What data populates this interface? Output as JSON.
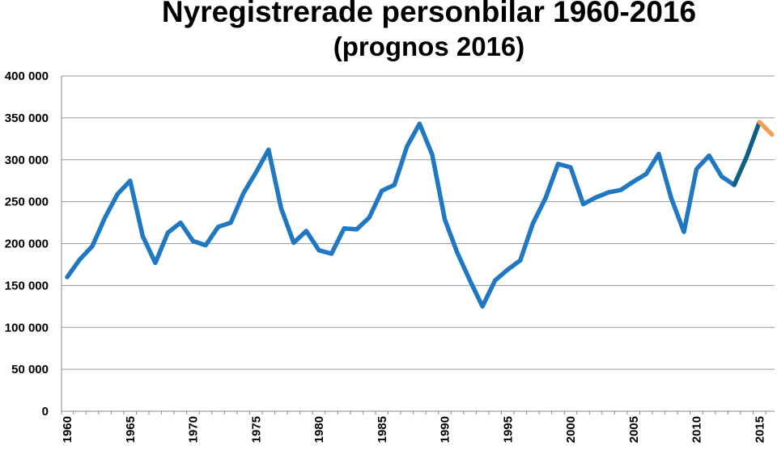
{
  "chart_data": {
    "type": "line",
    "title": "Nyregistrerade personbilar 1960-2016",
    "subtitle": "(prognos 2016)",
    "xlabel": "",
    "ylabel": "",
    "ylim": [
      0,
      400000
    ],
    "yticks": [
      0,
      50000,
      100000,
      150000,
      200000,
      250000,
      300000,
      350000,
      400000
    ],
    "ytick_labels": [
      "0",
      "50 000",
      "100 000",
      "150 000",
      "200 000",
      "250 000",
      "300 000",
      "350 000",
      "400 000"
    ],
    "xticks": [
      1960,
      1965,
      1970,
      1975,
      1980,
      1985,
      1990,
      1995,
      2000,
      2005,
      2010,
      2015
    ],
    "xtick_labels": [
      "1960",
      "1965",
      "1970",
      "1975",
      "1980",
      "1985",
      "1990",
      "1995",
      "2000",
      "2005",
      "2010",
      "2015"
    ],
    "grid": "horizontal",
    "legend": "none",
    "series": [
      {
        "color": "#1f78c1",
        "x": [
          1960,
          1961,
          1962,
          1963,
          1964,
          1965,
          1966,
          1967,
          1968,
          1969,
          1970,
          1971,
          1972,
          1973,
          1974,
          1975,
          1976,
          1977,
          1978,
          1979,
          1980,
          1981,
          1982,
          1983,
          1984,
          1985,
          1986,
          1987,
          1988,
          1989,
          1990,
          1991,
          1992,
          1993,
          1994,
          1995,
          1996,
          1997,
          1998,
          1999,
          2000,
          2001,
          2002,
          2003,
          2004,
          2005,
          2006,
          2007,
          2008,
          2009,
          2010,
          2011,
          2012,
          2013
        ],
        "values": [
          160000,
          181000,
          197000,
          231000,
          259000,
          275000,
          209000,
          177000,
          213000,
          225000,
          203000,
          198000,
          220000,
          225000,
          260000,
          285000,
          312000,
          242000,
          201000,
          215000,
          192000,
          188000,
          218000,
          217000,
          231000,
          263000,
          270000,
          316000,
          343000,
          306000,
          229000,
          189000,
          156000,
          125000,
          156000,
          169000,
          180000,
          224000,
          254000,
          295000,
          291000,
          247000,
          255000,
          261000,
          264000,
          274000,
          283000,
          307000,
          254000,
          214000,
          289000,
          305000,
          280000,
          270000
        ]
      },
      {
        "color": "#0e5f84",
        "x": [
          2013,
          2014,
          2015
        ],
        "values": [
          270000,
          304000,
          345000
        ]
      },
      {
        "color": "#f0a054",
        "x": [
          2015,
          2016
        ],
        "values": [
          345000,
          330000
        ]
      }
    ]
  }
}
